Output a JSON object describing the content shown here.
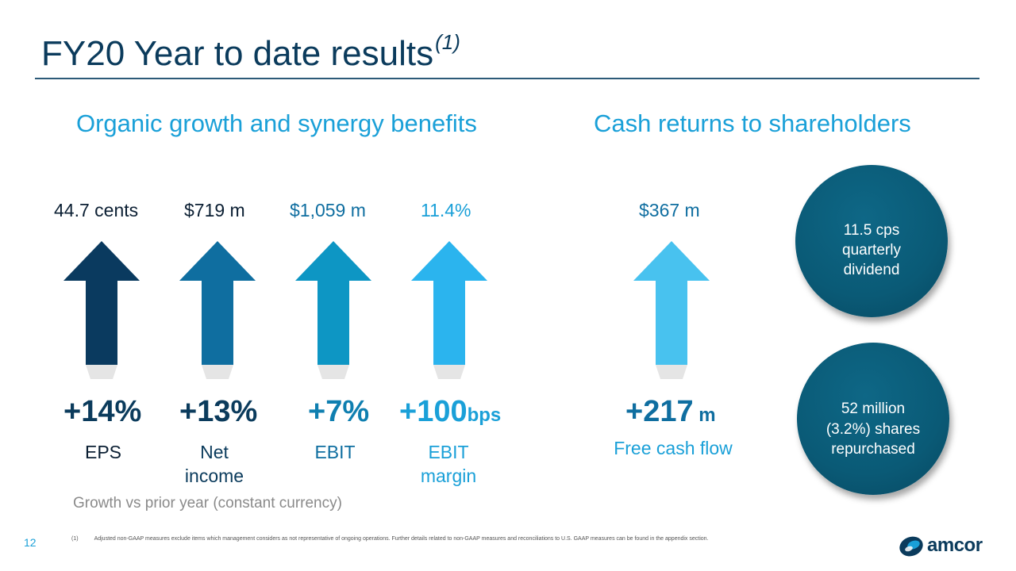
{
  "slide": {
    "title": "FY20 Year to date results",
    "title_footnote_marker": "(1)",
    "page_number": "12"
  },
  "sections": {
    "left_heading": "Organic growth and synergy benefits",
    "right_heading": "Cash returns to shareholders"
  },
  "metrics": [
    {
      "value": "44.7 cents",
      "value_color": "#0b1f33",
      "growth": "+14%",
      "growth_unit": "",
      "growth_color": "#0b3b5c",
      "label_line1": "EPS",
      "label_line2": "",
      "label_color": "#0b1f33",
      "arrow_color": "#0a3a5f"
    },
    {
      "value": "$719 m",
      "value_color": "#0b1f33",
      "growth": "+13%",
      "growth_unit": "",
      "growth_color": "#0b3b5c",
      "label_line1": "Net",
      "label_line2": "income",
      "label_color": "#0b3b5c",
      "arrow_color": "#0f6ea0"
    },
    {
      "value": "$1,059 m",
      "value_color": "#0f6ea0",
      "growth": "+7%",
      "growth_unit": "",
      "growth_color": "#0f7fb0",
      "label_line1": "EBIT",
      "label_line2": "",
      "label_color": "#0f6ea0",
      "arrow_color": "#0d96c4"
    },
    {
      "value": "11.4%",
      "value_color": "#1aa0d8",
      "growth": "+100",
      "growth_unit": "bps",
      "growth_color": "#1aa0d8",
      "label_line1": "EBIT",
      "label_line2": "margin",
      "label_color": "#1aa0d8",
      "arrow_color": "#2bb4ee"
    },
    {
      "value": "$367 m",
      "value_color": "#0f6ea0",
      "growth": "+217",
      "growth_unit": " m",
      "growth_color": "#0f6ea0",
      "label_line1": "Free cash flow",
      "label_line2": "",
      "label_color": "#1aa0d8",
      "arrow_color": "#48c2ef"
    }
  ],
  "circles": [
    {
      "line1": "11.5 cps",
      "line2": "quarterly",
      "line3": "dividend"
    },
    {
      "line1": "52 million",
      "line2": "(3.2%) shares",
      "line3": "repurchased"
    }
  ],
  "note": "Growth vs prior year (constant currency)",
  "footnote": {
    "marker": "(1)",
    "text": "Adjusted non-GAAP measures exclude items which management considers as not representative of ongoing operations.  Further details related to non-GAAP measures and reconciliations to U.S. GAAP measures can be found in the appendix section."
  },
  "brand": {
    "name": "amcor",
    "icon": "amcor-logo-icon",
    "colors": {
      "dark_blue": "#0b3b5c",
      "accent": "#1aa0d8"
    }
  }
}
